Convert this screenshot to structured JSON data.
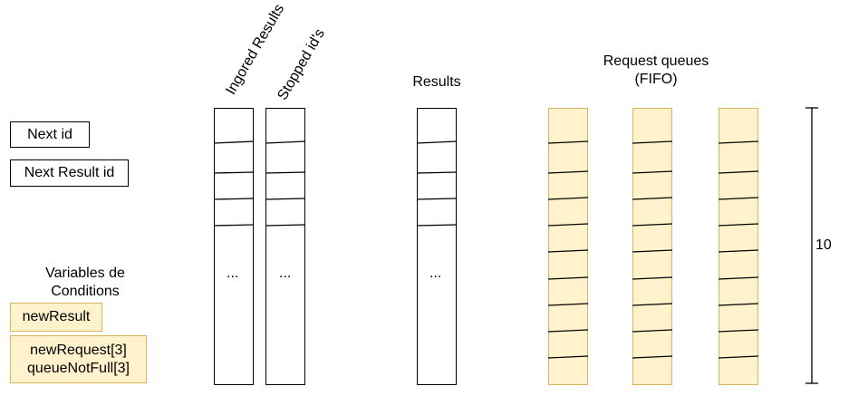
{
  "counters": {
    "next_id": "Next id",
    "next_result_id": "Next Result id"
  },
  "conditions": {
    "title": "Variables de Conditions",
    "new_result": "newResult",
    "new_request": "newRequest[3]",
    "queue_not_full": "queueNotFull[3]"
  },
  "columns": {
    "ignored_results": "Ingored Results",
    "stopped_ids": "Stopped id's",
    "results": "Results",
    "request_queues_line1": "Request queues",
    "request_queues_line2": "(FIFO)",
    "ellipsis": "..."
  },
  "queue_size": "10",
  "colors": {
    "queue_fill": "#fff2cc",
    "queue_stroke": "#d6b656",
    "line": "#000000"
  }
}
